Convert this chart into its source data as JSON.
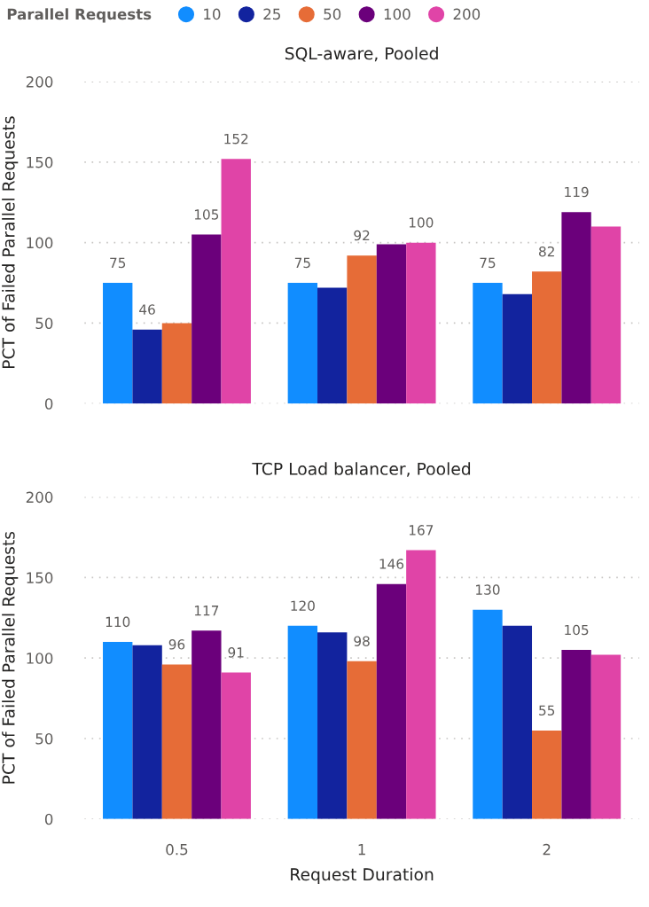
{
  "chart_data": [
    {
      "type": "bar",
      "title": "SQL-aware, Pooled",
      "ylabel": "PCT of Failed Parallel Requests",
      "legend_title": "Parallel Requests",
      "legend": "top",
      "categories": [
        "0.5",
        "1",
        "2"
      ],
      "ylim": [
        0,
        200
      ],
      "yticks": [
        0,
        50,
        100,
        150,
        200
      ],
      "grid": "y",
      "tick_labels": "y",
      "series": [
        {
          "name": "10",
          "color": "#118dff",
          "values": [
            75,
            75,
            75
          ],
          "value_labels": [
            "75",
            "75",
            "75"
          ]
        },
        {
          "name": "25",
          "color": "#12239e",
          "values": [
            46,
            72,
            68
          ],
          "value_labels": [
            "46",
            null,
            null
          ]
        },
        {
          "name": "50",
          "color": "#e66c37",
          "values": [
            50,
            92,
            82
          ],
          "value_labels": [
            null,
            "92",
            "82"
          ]
        },
        {
          "name": "100",
          "color": "#6b007b",
          "values": [
            105,
            99,
            119
          ],
          "value_labels": [
            "105",
            null,
            "119"
          ]
        },
        {
          "name": "200",
          "color": "#e044a7",
          "values": [
            152,
            100,
            110
          ],
          "value_labels": [
            "152",
            "100",
            null
          ]
        }
      ]
    },
    {
      "type": "bar",
      "title": "TCP Load balancer, Pooled",
      "xlabel": "Request Duration",
      "ylabel": "PCT of Failed Parallel Requests",
      "categories": [
        "0.5",
        "1",
        "2"
      ],
      "ylim": [
        0,
        200
      ],
      "yticks": [
        0,
        50,
        100,
        150,
        200
      ],
      "grid": "y",
      "series": [
        {
          "name": "10",
          "color": "#118dff",
          "values": [
            110,
            120,
            130
          ],
          "value_labels": [
            "110",
            "120",
            "130"
          ]
        },
        {
          "name": "25",
          "color": "#12239e",
          "values": [
            108,
            116,
            120
          ],
          "value_labels": [
            null,
            null,
            null
          ]
        },
        {
          "name": "50",
          "color": "#e66c37",
          "values": [
            96,
            98,
            55
          ],
          "value_labels": [
            "96",
            "98",
            "55"
          ]
        },
        {
          "name": "100",
          "color": "#6b007b",
          "values": [
            117,
            146,
            105
          ],
          "value_labels": [
            "117",
            "146",
            "105"
          ]
        },
        {
          "name": "200",
          "color": "#e044a7",
          "values": [
            91,
            167,
            102
          ],
          "value_labels": [
            "91",
            "167",
            null
          ]
        }
      ]
    }
  ]
}
